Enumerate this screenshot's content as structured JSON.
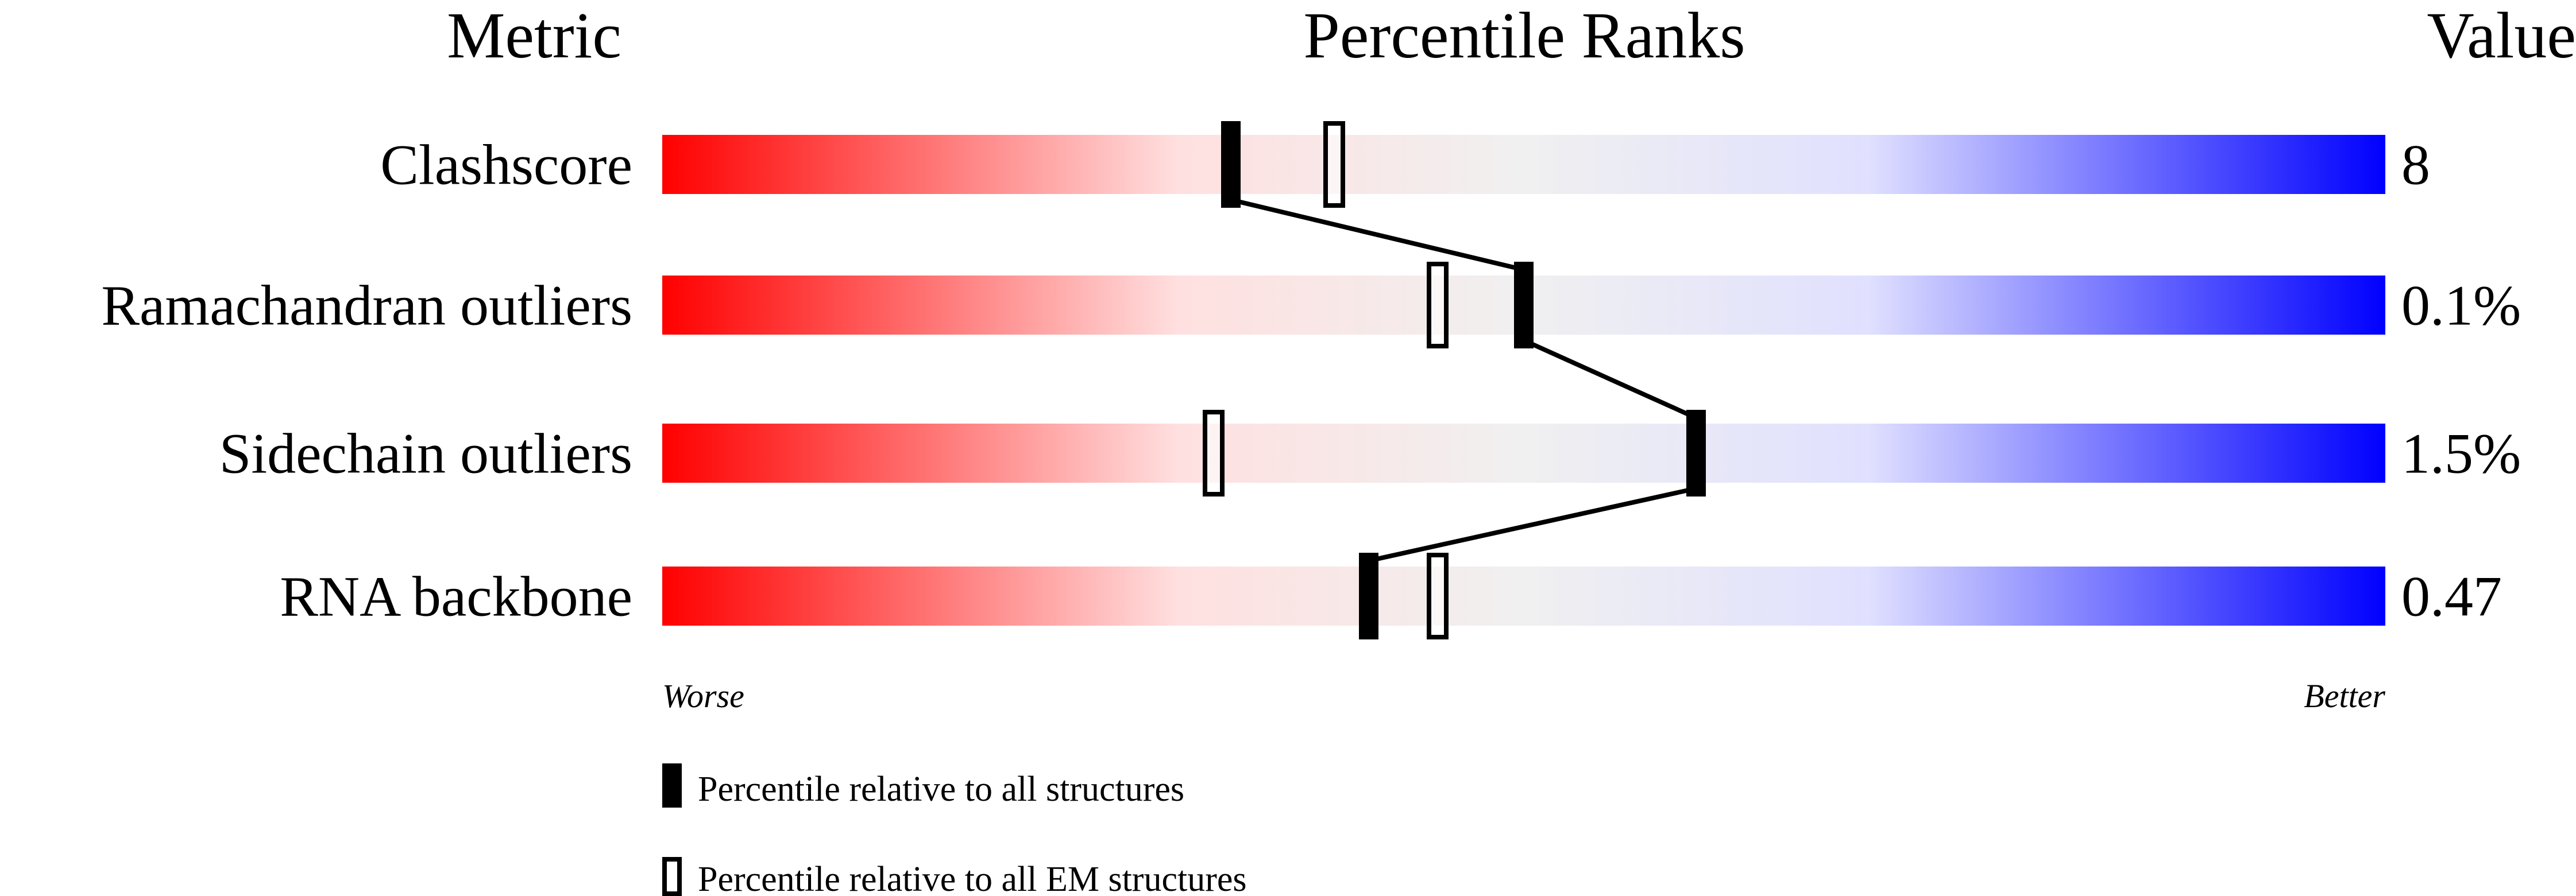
{
  "chart_data": {
    "type": "percentile-slider",
    "headers": {
      "metric": "Metric",
      "ranks": "Percentile Ranks",
      "value": "Value"
    },
    "xlim": [
      0,
      100
    ],
    "axis_left_label": "Worse",
    "axis_right_label": "Better",
    "metrics": [
      {
        "label": "Clashscore",
        "value": "8",
        "percentile_all": 33,
        "percentile_em": 39
      },
      {
        "label": "Ramachandran outliers",
        "value": "0.1%",
        "percentile_all": 50,
        "percentile_em": 45
      },
      {
        "label": "Sidechain outliers",
        "value": "1.5%",
        "percentile_all": 60,
        "percentile_em": 32
      },
      {
        "label": "RNA backbone",
        "value": "0.47",
        "percentile_all": 41,
        "percentile_em": 45
      }
    ],
    "legend": [
      {
        "label": "Percentile relative to all structures",
        "marker": "filled"
      },
      {
        "label": "Percentile relative to all EM structures",
        "marker": "open"
      }
    ],
    "colors": {
      "gradient": [
        "#ff0000",
        "#ffe0e0",
        "#f0f0f0",
        "#e0e0ff",
        "#0000ff"
      ],
      "marker": "#000000"
    }
  }
}
